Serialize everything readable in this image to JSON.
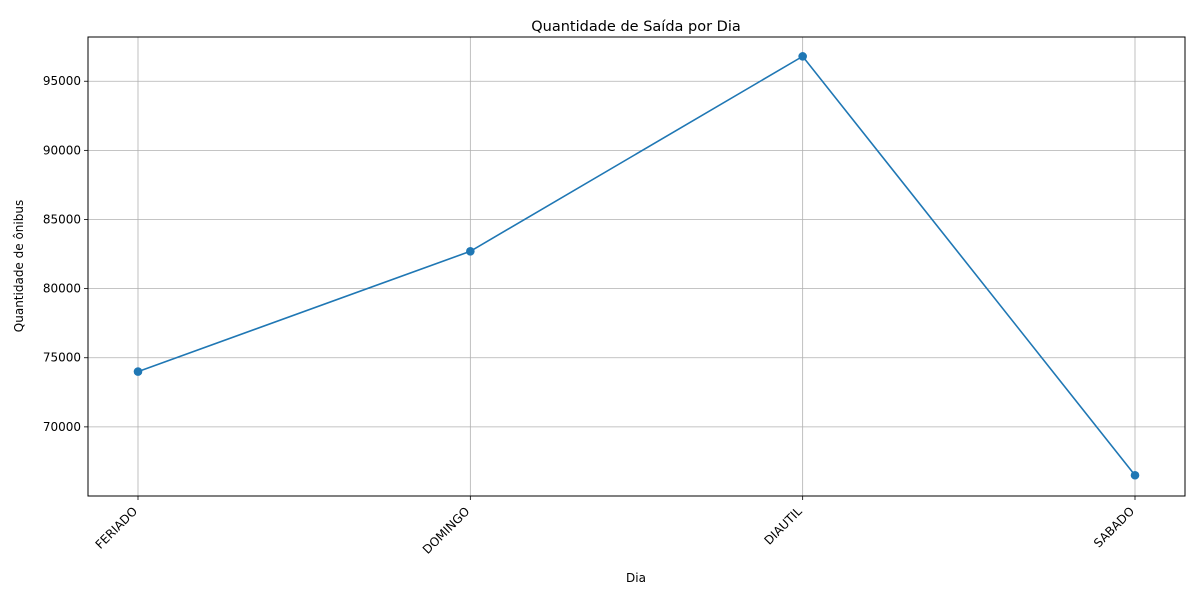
{
  "chart_data": {
    "type": "line",
    "title": "Quantidade de Saída por Dia",
    "xlabel": "Dia",
    "ylabel": "Quantidade de ônibus",
    "categories": [
      "FERIADO",
      "DOMINGO",
      "DIAUTIL",
      "SABADO"
    ],
    "series": [
      {
        "values": [
          74000,
          82700,
          96800,
          66500
        ],
        "color": "#1f77b4"
      }
    ],
    "ylim": [
      65000,
      98200
    ],
    "yticks": [
      70000,
      75000,
      80000,
      85000,
      90000,
      95000
    ],
    "grid": true,
    "marker": "circle"
  }
}
